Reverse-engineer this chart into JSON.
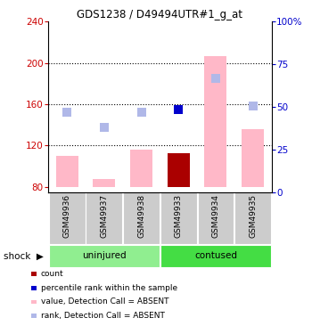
{
  "title": "GDS1238 / D49494UTR#1_g_at",
  "samples": [
    "GSM49936",
    "GSM49937",
    "GSM49938",
    "GSM49933",
    "GSM49934",
    "GSM49935"
  ],
  "bar_values": [
    110,
    88,
    116,
    113,
    207,
    136
  ],
  "bar_colors": [
    "#ffb8c8",
    "#ffb8c8",
    "#ffb8c8",
    "#aa0000",
    "#ffb8c8",
    "#ffb8c8"
  ],
  "rank_dots": [
    152,
    138,
    152,
    155,
    185,
    158
  ],
  "rank_dot_colors": [
    "#b0b8e8",
    "#b0b8e8",
    "#b0b8e8",
    "#0000cc",
    "#b0b8e8",
    "#b0b8e8"
  ],
  "ylim_left": [
    75,
    240
  ],
  "ylim_right": [
    0,
    100
  ],
  "yticks_left": [
    80,
    120,
    160,
    200,
    240
  ],
  "yticks_right": [
    0,
    25,
    50,
    75,
    100
  ],
  "ytick_labels_right": [
    "0",
    "25",
    "50",
    "75",
    "100%"
  ],
  "hgrid_vals": [
    120,
    160,
    200
  ],
  "bar_bottom": 80,
  "bar_width": 0.6,
  "dot_size": 55,
  "group_spans": [
    [
      0,
      2,
      "uninjured",
      "#90ee90"
    ],
    [
      3,
      5,
      "contused",
      "#44dd44"
    ]
  ],
  "legend_items": [
    {
      "label": "count",
      "color": "#aa0000"
    },
    {
      "label": "percentile rank within the sample",
      "color": "#0000cc"
    },
    {
      "label": "value, Detection Call = ABSENT",
      "color": "#ffb8c8"
    },
    {
      "label": "rank, Detection Call = ABSENT",
      "color": "#b0b8e8"
    }
  ]
}
